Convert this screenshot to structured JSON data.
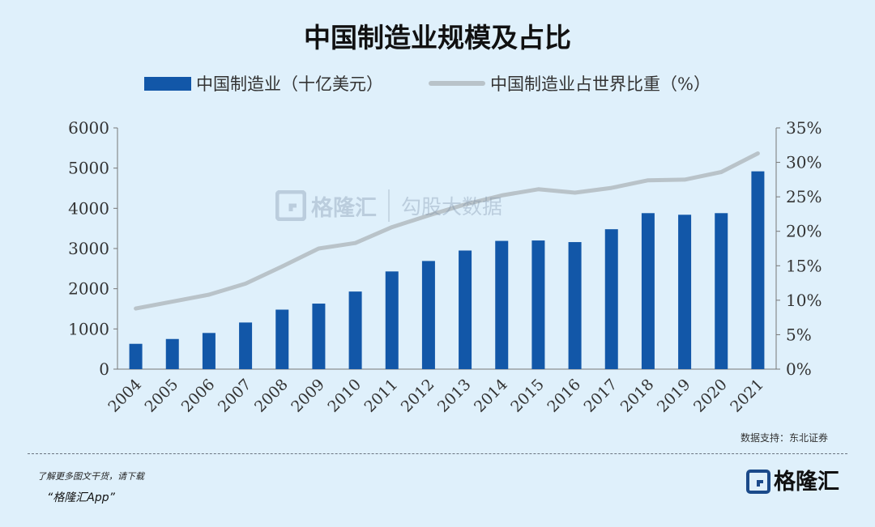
{
  "brand": {
    "color_bar": "#1257a8",
    "color_line": "#b9c3c9"
  },
  "watermark": {
    "logo_icon": "gelonghui-g-icon",
    "name": "格隆汇",
    "name2": "勾股大数据"
  },
  "source": "数据支持：东北证券",
  "footer": {
    "line1": "了解更多图文干货，请下载",
    "line2": "“格隆汇App”",
    "logo_icon": "gelonghui-g-icon",
    "logo_text": "格隆汇"
  },
  "chart_data": {
    "type": "bar",
    "title": "中国制造业规模及占比",
    "categories": [
      "2004",
      "2005",
      "2006",
      "2007",
      "2008",
      "2009",
      "2010",
      "2011",
      "2012",
      "2013",
      "2014",
      "2015",
      "2016",
      "2017",
      "2018",
      "2019",
      "2020",
      "2021"
    ],
    "series": [
      {
        "name": "中国制造业（十亿美元）",
        "type": "bar",
        "axis": "left",
        "values": [
          630,
          750,
          900,
          1160,
          1480,
          1630,
          1930,
          2430,
          2690,
          2950,
          3190,
          3200,
          3160,
          3480,
          3880,
          3840,
          3880,
          4920
        ]
      },
      {
        "name": "中国制造业占世界比重（%）",
        "type": "line",
        "axis": "right",
        "values": [
          8.8,
          9.8,
          10.8,
          12.4,
          14.9,
          17.5,
          18.3,
          20.6,
          22.3,
          23.9,
          25.2,
          26.1,
          25.6,
          26.3,
          27.4,
          27.5,
          28.6,
          31.3
        ]
      }
    ],
    "y_left": {
      "ylim": [
        0,
        6000
      ],
      "ticks": [
        "0",
        "1000",
        "2000",
        "3000",
        "4000",
        "5000",
        "6000"
      ]
    },
    "y_right": {
      "ylim": [
        0,
        35
      ],
      "ticks": [
        "0%",
        "5%",
        "10%",
        "15%",
        "20%",
        "25%",
        "30%",
        "35%"
      ]
    },
    "grid": false,
    "legend": "top"
  }
}
